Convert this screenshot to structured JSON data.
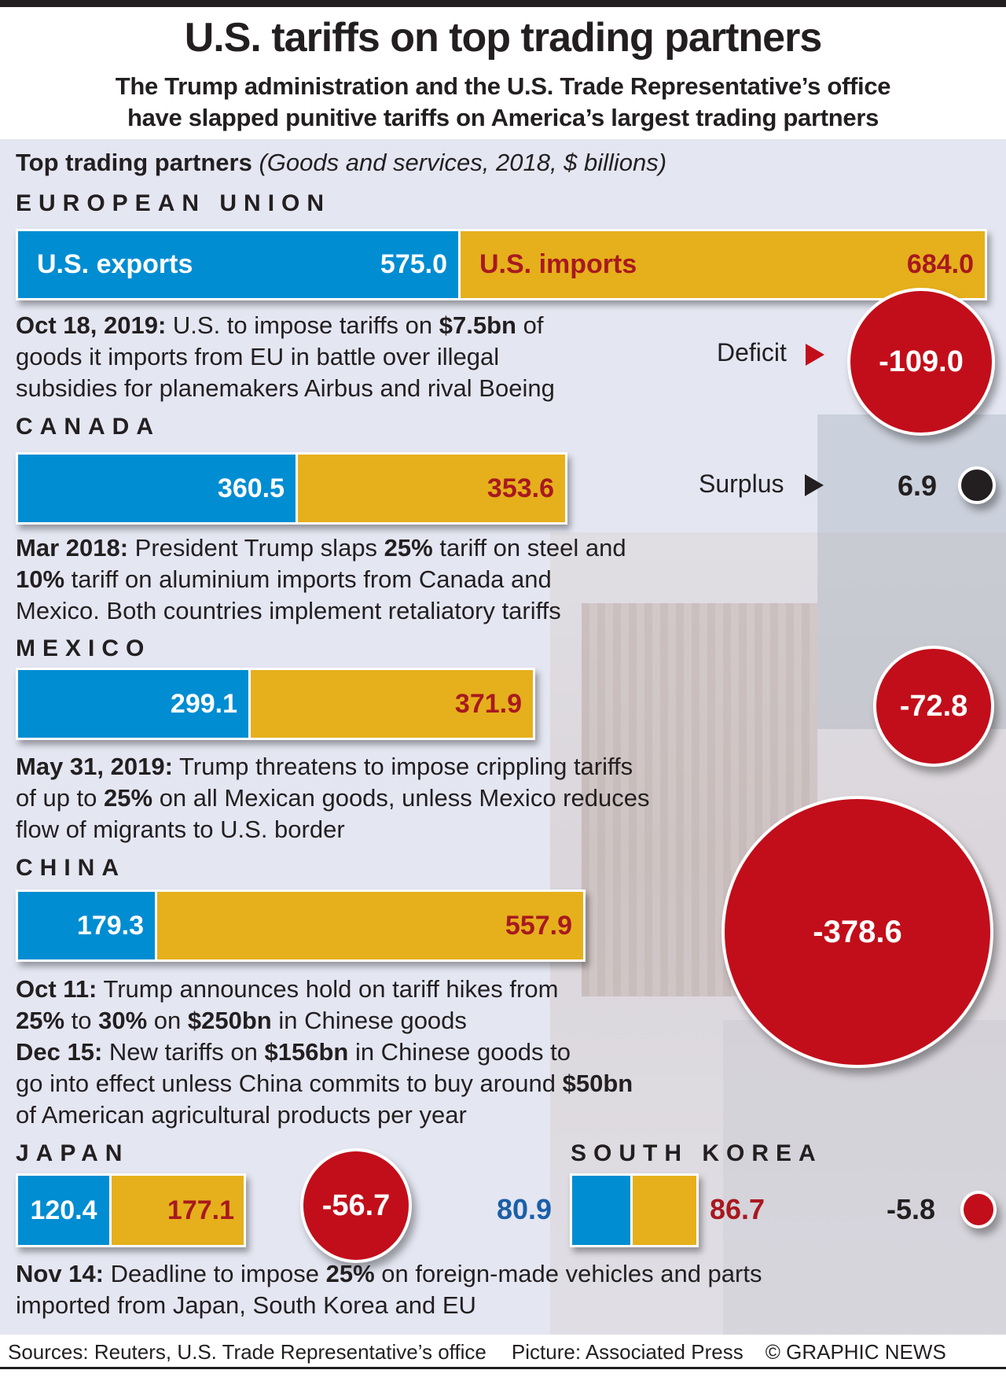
{
  "header": {
    "title": "U.S. tariffs on top trading partners",
    "subtitle_line1": "The Trump administration and the U.S. Trade Representative’s office",
    "subtitle_line2": "have slapped punitive tariffs on America’s largest trading partners"
  },
  "section": {
    "heading": "Top trading partners",
    "heading_note": "(Goods and services, 2018, $ billions)"
  },
  "legend": {
    "exports": "U.S. exports",
    "imports": "U.S. imports",
    "deficit": "Deficit",
    "surplus": "Surplus"
  },
  "colors": {
    "exports": "#008dd2",
    "imports": "#e5b01c",
    "deficit": "#c20e1a",
    "surplus": "#231f20",
    "imports_text": "#a8191f"
  },
  "partners": [
    {
      "name": "EUROPEAN UNION",
      "exports": "575.0",
      "imports": "684.0",
      "balance": "-109.0"
    },
    {
      "name": "CANADA",
      "exports": "360.5",
      "imports": "353.6",
      "balance": "6.9"
    },
    {
      "name": "MEXICO",
      "exports": "299.1",
      "imports": "371.9",
      "balance": "-72.8"
    },
    {
      "name": "CHINA",
      "exports": "179.3",
      "imports": "557.9",
      "balance": "-378.6"
    },
    {
      "name": "JAPAN",
      "exports": "120.4",
      "imports": "177.1",
      "balance": "-56.7"
    },
    {
      "name": "SOUTH KOREA",
      "exports": "80.9",
      "imports": "86.7",
      "balance": "-5.8"
    }
  ],
  "notes": {
    "eu": [
      [
        {
          "t": "Oct 18, 2019:",
          "b": true
        },
        {
          "t": " U.S. to impose tariffs on "
        },
        {
          "t": "$7.5bn",
          "b": true
        },
        {
          "t": " of"
        }
      ],
      [
        {
          "t": "goods it imports from EU in battle over illegal"
        }
      ],
      [
        {
          "t": "subsidies for planemakers Airbus and rival Boeing"
        }
      ]
    ],
    "canada": [
      [
        {
          "t": "Mar 2018:",
          "b": true
        },
        {
          "t": " President Trump slaps "
        },
        {
          "t": "25%",
          "b": true
        },
        {
          "t": " tariff on steel and"
        }
      ],
      [
        {
          "t": "10%",
          "b": true
        },
        {
          "t": " tariff on aluminium imports from Canada and"
        }
      ],
      [
        {
          "t": "Mexico. Both countries implement retaliatory tariffs"
        }
      ]
    ],
    "mexico": [
      [
        {
          "t": "May 31, 2019:",
          "b": true
        },
        {
          "t": " Trump threatens to impose crippling tariffs"
        }
      ],
      [
        {
          "t": "of up to "
        },
        {
          "t": "25%",
          "b": true
        },
        {
          "t": " on all Mexican goods, unless Mexico reduces"
        }
      ],
      [
        {
          "t": "flow of migrants to U.S. border"
        }
      ]
    ],
    "china": [
      [
        {
          "t": "Oct 11:",
          "b": true
        },
        {
          "t": " Trump announces hold on tariff hikes from"
        }
      ],
      [
        {
          "t": "25%",
          "b": true
        },
        {
          "t": " to "
        },
        {
          "t": "30%",
          "b": true
        },
        {
          "t": " on "
        },
        {
          "t": "$250bn",
          "b": true
        },
        {
          "t": " in Chinese goods"
        }
      ],
      [
        {
          "t": "Dec 15:",
          "b": true
        },
        {
          "t": " New tariffs on "
        },
        {
          "t": "$156bn",
          "b": true
        },
        {
          "t": " in Chinese goods to"
        }
      ],
      [
        {
          "t": "go into effect unless China commits to buy around "
        },
        {
          "t": "$50bn",
          "b": true
        }
      ],
      [
        {
          "t": "of American agricultural products per year"
        }
      ]
    ],
    "japan_korea": [
      [
        {
          "t": "Nov 14:",
          "b": true
        },
        {
          "t": " Deadline to impose "
        },
        {
          "t": "25%",
          "b": true
        },
        {
          "t": " on foreign-made vehicles and parts"
        }
      ],
      [
        {
          "t": "imported from Japan, South Korea and EU"
        }
      ]
    ]
  },
  "footer": {
    "sources": "Sources: Reuters, U.S. Trade Representative’s office",
    "picture": "Picture: Associated Press",
    "credit": "© GRAPHIC NEWS"
  }
}
